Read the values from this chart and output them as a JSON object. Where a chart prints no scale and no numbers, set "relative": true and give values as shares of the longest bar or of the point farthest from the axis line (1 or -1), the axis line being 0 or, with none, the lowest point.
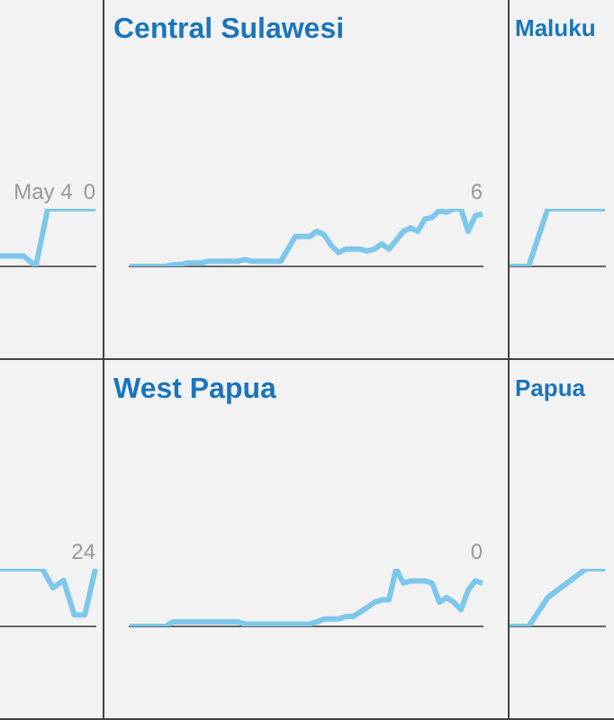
{
  "chart_data": [
    {
      "type": "line",
      "relative": true,
      "categories": [
        null,
        null,
        null,
        null,
        null,
        null,
        null,
        null,
        null
      ],
      "legend": false,
      "grid": false,
      "tick_labels": false,
      "annotations": [
        "May 4",
        "0"
      ],
      "series": [
        {
          "color": "#7dc8ea",
          "values": [
            0.18,
            0.18,
            0.18,
            0,
            1,
            1,
            1,
            1,
            1
          ]
        }
      ]
    },
    {
      "type": "line",
      "relative": true,
      "title": "Central Sulawesi",
      "categories": [
        null,
        null,
        null,
        null,
        null,
        null,
        null,
        null,
        null,
        null,
        null,
        null,
        null,
        null,
        null,
        null,
        null,
        null,
        null,
        null,
        null,
        null,
        null,
        null,
        null,
        null,
        null,
        null,
        null,
        null,
        null,
        null,
        null,
        null,
        null,
        null,
        null,
        null,
        null,
        null,
        null,
        null,
        null,
        null,
        null,
        null,
        null,
        null,
        null,
        null
      ],
      "legend": false,
      "grid": false,
      "tick_labels": false,
      "annotations": [
        "6"
      ],
      "series": [
        {
          "color": "#7dc8ea",
          "values": [
            0,
            0,
            0,
            0,
            0,
            0,
            0.03,
            0.03,
            0.06,
            0.06,
            0.06,
            0.09,
            0.09,
            0.09,
            0.09,
            0.09,
            0.12,
            0.09,
            0.09,
            0.09,
            0.09,
            0.09,
            0.3,
            0.52,
            0.52,
            0.52,
            0.61,
            0.55,
            0.36,
            0.24,
            0.3,
            0.3,
            0.3,
            0.27,
            0.3,
            0.39,
            0.3,
            0.45,
            0.61,
            0.67,
            0.61,
            0.82,
            0.85,
            0.97,
            0.94,
            1,
            1,
            0.61,
            0.88,
            0.91
          ]
        }
      ]
    },
    {
      "type": "line",
      "relative": true,
      "title": "Maluku",
      "categories": [
        null,
        null,
        null,
        null,
        null,
        null
      ],
      "legend": false,
      "grid": false,
      "tick_labels": false,
      "series": [
        {
          "color": "#7dc8ea",
          "values": [
            0,
            0,
            1,
            1,
            1,
            1
          ]
        }
      ]
    },
    {
      "type": "line",
      "relative": true,
      "categories": [
        null,
        null,
        null,
        null,
        null,
        null,
        null,
        null,
        null,
        null
      ],
      "legend": false,
      "grid": false,
      "tick_labels": false,
      "annotations": [
        "24"
      ],
      "series": [
        {
          "color": "#7dc8ea",
          "values": [
            1,
            1,
            1,
            1,
            1,
            0.67,
            0.8,
            0.2,
            0.2,
            1
          ]
        }
      ]
    },
    {
      "type": "line",
      "relative": true,
      "title": "West Papua",
      "categories": [
        null,
        null,
        null,
        null,
        null,
        null,
        null,
        null,
        null,
        null,
        null,
        null,
        null,
        null,
        null,
        null,
        null,
        null,
        null,
        null,
        null,
        null,
        null,
        null,
        null,
        null,
        null,
        null,
        null,
        null,
        null,
        null,
        null,
        null,
        null,
        null,
        null,
        null,
        null,
        null,
        null,
        null,
        null,
        null,
        null,
        null,
        null,
        null,
        null,
        null
      ],
      "legend": false,
      "grid": false,
      "tick_labels": false,
      "annotations": [
        "0"
      ],
      "series": [
        {
          "color": "#7dc8ea",
          "values": [
            0,
            0,
            0,
            0,
            0,
            0,
            0.08,
            0.08,
            0.08,
            0.08,
            0.08,
            0.08,
            0.08,
            0.08,
            0.08,
            0.08,
            0.04,
            0.04,
            0.04,
            0.04,
            0.04,
            0.04,
            0.04,
            0.04,
            0.04,
            0.04,
            0.08,
            0.13,
            0.13,
            0.13,
            0.17,
            0.17,
            0.25,
            0.33,
            0.42,
            0.46,
            0.46,
            1,
            0.75,
            0.79,
            0.79,
            0.79,
            0.75,
            0.42,
            0.5,
            0.42,
            0.29,
            0.63,
            0.79,
            0.75
          ]
        }
      ]
    },
    {
      "type": "line",
      "relative": true,
      "title": "Papua",
      "categories": [
        null,
        null,
        null,
        null,
        null,
        null
      ],
      "legend": false,
      "grid": false,
      "tick_labels": false,
      "series": [
        {
          "color": "#7dc8ea",
          "values": [
            0,
            0,
            0.5,
            0.75,
            1,
            1
          ]
        }
      ]
    }
  ]
}
